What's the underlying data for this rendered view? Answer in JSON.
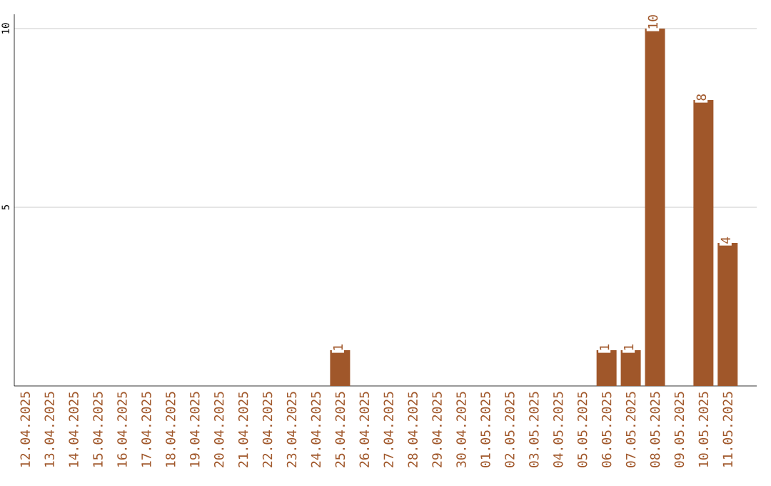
{
  "chart_data": {
    "type": "bar",
    "categories": [
      "12.04.2025",
      "13.04.2025",
      "14.04.2025",
      "15.04.2025",
      "16.04.2025",
      "17.04.2025",
      "18.04.2025",
      "19.04.2025",
      "20.04.2025",
      "21.04.2025",
      "22.04.2025",
      "23.04.2025",
      "24.04.2025",
      "25.04.2025",
      "26.04.2025",
      "27.04.2025",
      "28.04.2025",
      "29.04.2025",
      "30.04.2025",
      "01.05.2025",
      "02.05.2025",
      "03.05.2025",
      "04.05.2025",
      "05.05.2025",
      "06.05.2025",
      "07.05.2025",
      "08.05.2025",
      "09.05.2025",
      "10.05.2025",
      "11.05.2025"
    ],
    "values": [
      0,
      0,
      0,
      0,
      0,
      0,
      0,
      0,
      0,
      0,
      0,
      0,
      0,
      1,
      0,
      0,
      0,
      0,
      0,
      0,
      0,
      0,
      0,
      0,
      1,
      1,
      10,
      0,
      8,
      4
    ],
    "value_labels": [
      null,
      null,
      null,
      null,
      null,
      null,
      null,
      null,
      null,
      null,
      null,
      null,
      null,
      "1",
      null,
      null,
      null,
      null,
      null,
      null,
      null,
      null,
      null,
      null,
      "1",
      "1",
      "10",
      null,
      "8",
      "4"
    ],
    "color": "#a0572a",
    "ylim": [
      0,
      10.4
    ],
    "yticks": [
      5,
      10
    ],
    "grid": "y"
  }
}
